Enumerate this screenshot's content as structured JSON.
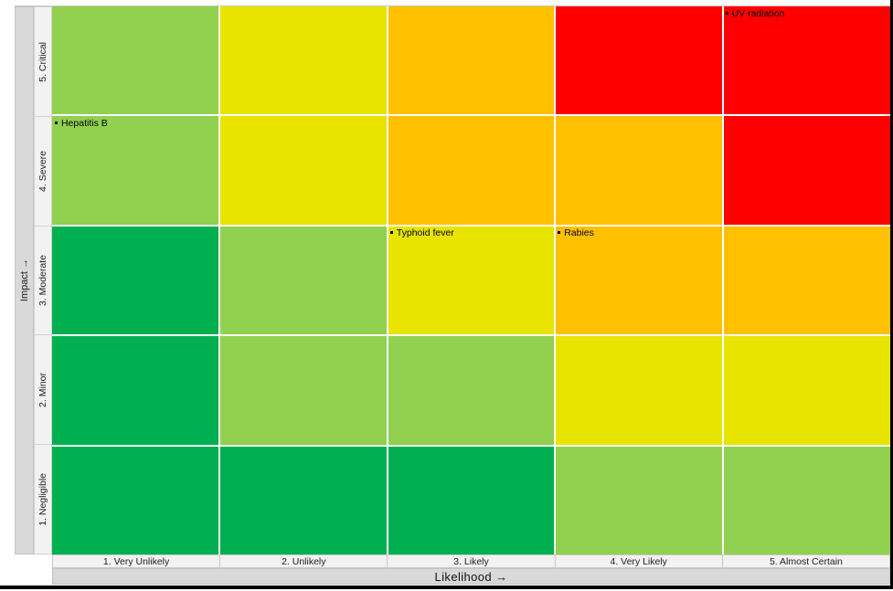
{
  "chart_data": {
    "type": "heatmap",
    "xlabel": "Likelihood  →",
    "ylabel": "Impact →",
    "x_categories": [
      "1. Very Unlikely",
      "2. Unlikely",
      "3. Likely",
      "4. Very Likely",
      "5. Almost Certain"
    ],
    "y_categories_top_to_bottom": [
      "5.  Critical",
      "4.  Severe",
      "3.  Moderate",
      "2.  Minor",
      "1.  Negligible"
    ],
    "palette": {
      "green": "#00B050",
      "light_green": "#92D050",
      "yellow": "#E8E400",
      "orange": "#FFC000",
      "red": "#FF0000"
    },
    "cell_colors_top_to_bottom": [
      [
        "light_green",
        "yellow",
        "orange",
        "red",
        "red"
      ],
      [
        "light_green",
        "yellow",
        "orange",
        "orange",
        "red"
      ],
      [
        "green",
        "light_green",
        "yellow",
        "orange",
        "orange"
      ],
      [
        "green",
        "light_green",
        "light_green",
        "yellow",
        "yellow"
      ],
      [
        "green",
        "green",
        "green",
        "light_green",
        "light_green"
      ]
    ],
    "points": [
      {
        "label": "UV radiation",
        "likelihood": 5,
        "impact": 5
      },
      {
        "label": "Hepatitis B",
        "likelihood": 1,
        "impact": 4
      },
      {
        "label": "Typhoid fever",
        "likelihood": 3,
        "impact": 3
      },
      {
        "label": "Rabies",
        "likelihood": 4,
        "impact": 3
      }
    ],
    "axis_ranges": {
      "likelihood": [
        1,
        5
      ],
      "impact": [
        1,
        5
      ]
    },
    "grid": "white cell separators",
    "legend_position": "none"
  }
}
